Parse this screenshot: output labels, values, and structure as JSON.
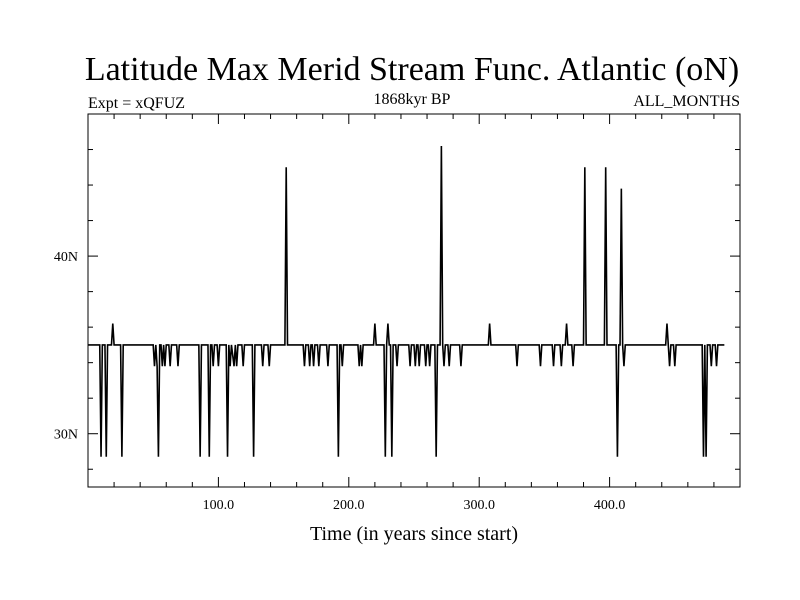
{
  "chart_data": {
    "type": "line",
    "title": "Latitude Max Merid Stream Func. Atlantic (oN)",
    "subtitle_left": "Expt = xQFUZ",
    "subtitle_center": "1868kyr BP",
    "subtitle_right": "ALL_MONTHS",
    "xlabel": "Time (in years since start)",
    "ylabel": "",
    "xlim": [
      0,
      500
    ],
    "ylim": [
      27,
      48
    ],
    "x_ticks": [
      {
        "value": 100,
        "label": "100.0"
      },
      {
        "value": 200,
        "label": "200.0"
      },
      {
        "value": 300,
        "label": "300.0"
      },
      {
        "value": 400,
        "label": "400.0"
      }
    ],
    "y_ticks": [
      {
        "value": 30,
        "label": "30N"
      },
      {
        "value": 40,
        "label": "40N"
      }
    ],
    "grid": false,
    "baseline": 35,
    "series": [
      {
        "points": [
          [
            0,
            35
          ],
          [
            9,
            35
          ],
          [
            10,
            28.7
          ],
          [
            11,
            35
          ],
          [
            13,
            35
          ],
          [
            14,
            28.7
          ],
          [
            15,
            35
          ],
          [
            18,
            35
          ],
          [
            19,
            36.2
          ],
          [
            20,
            35
          ],
          [
            25,
            35
          ],
          [
            26,
            28.7
          ],
          [
            27,
            35
          ],
          [
            50,
            35
          ],
          [
            51,
            33.8
          ],
          [
            52,
            35
          ],
          [
            53,
            33.8
          ],
          [
            54,
            28.7
          ],
          [
            55,
            35
          ],
          [
            56,
            35
          ],
          [
            57,
            33.8
          ],
          [
            58,
            35
          ],
          [
            59,
            33.8
          ],
          [
            60,
            35
          ],
          [
            62,
            35
          ],
          [
            63,
            33.8
          ],
          [
            64,
            35
          ],
          [
            68,
            35
          ],
          [
            69,
            33.8
          ],
          [
            70,
            35
          ],
          [
            85,
            35
          ],
          [
            86,
            28.7
          ],
          [
            87,
            35
          ],
          [
            92,
            35
          ],
          [
            93,
            28.7
          ],
          [
            94,
            35
          ],
          [
            95,
            35
          ],
          [
            96,
            33.8
          ],
          [
            97,
            35
          ],
          [
            99,
            35
          ],
          [
            100,
            33.8
          ],
          [
            101,
            35
          ],
          [
            106,
            35
          ],
          [
            107,
            28.7
          ],
          [
            108,
            35
          ],
          [
            109,
            33.8
          ],
          [
            110,
            35
          ],
          [
            112,
            33.8
          ],
          [
            113,
            35
          ],
          [
            114,
            33.8
          ],
          [
            115,
            35
          ],
          [
            118,
            35
          ],
          [
            119,
            33.8
          ],
          [
            120,
            35
          ],
          [
            126,
            35
          ],
          [
            127,
            28.7
          ],
          [
            128,
            35
          ],
          [
            133,
            35
          ],
          [
            134,
            33.8
          ],
          [
            135,
            35
          ],
          [
            138,
            35
          ],
          [
            139,
            33.8
          ],
          [
            140,
            35
          ],
          [
            151,
            35
          ],
          [
            152,
            45
          ],
          [
            153,
            35
          ],
          [
            165,
            35
          ],
          [
            166,
            33.8
          ],
          [
            167,
            35
          ],
          [
            169,
            35
          ],
          [
            170,
            33.8
          ],
          [
            171,
            35
          ],
          [
            172,
            35
          ],
          [
            173,
            33.8
          ],
          [
            174,
            35
          ],
          [
            176,
            35
          ],
          [
            177,
            33.8
          ],
          [
            178,
            35
          ],
          [
            183,
            35
          ],
          [
            184,
            33.8
          ],
          [
            185,
            35
          ],
          [
            191,
            35
          ],
          [
            192,
            28.7
          ],
          [
            193,
            35
          ],
          [
            194,
            35
          ],
          [
            195,
            33.8
          ],
          [
            196,
            35
          ],
          [
            207,
            35
          ],
          [
            208,
            33.8
          ],
          [
            209,
            35
          ],
          [
            210,
            33.8
          ],
          [
            211,
            35
          ],
          [
            219,
            35
          ],
          [
            220,
            36.2
          ],
          [
            221,
            35
          ],
          [
            227,
            35
          ],
          [
            228,
            28.7
          ],
          [
            229,
            35
          ],
          [
            230,
            36.2
          ],
          [
            231,
            35
          ],
          [
            232,
            35
          ],
          [
            233,
            28.7
          ],
          [
            234,
            35
          ],
          [
            236,
            35
          ],
          [
            237,
            33.8
          ],
          [
            238,
            35
          ],
          [
            246,
            35
          ],
          [
            247,
            33.8
          ],
          [
            248,
            35
          ],
          [
            250,
            35
          ],
          [
            251,
            33.8
          ],
          [
            252,
            35
          ],
          [
            253,
            35
          ],
          [
            254,
            33.8
          ],
          [
            255,
            35
          ],
          [
            258,
            35
          ],
          [
            259,
            33.8
          ],
          [
            260,
            35
          ],
          [
            261,
            35
          ],
          [
            262,
            33.8
          ],
          [
            263,
            35
          ],
          [
            266,
            35
          ],
          [
            267,
            28.7
          ],
          [
            268,
            35
          ],
          [
            270,
            35
          ],
          [
            271,
            46.2
          ],
          [
            272,
            35
          ],
          [
            273,
            33.8
          ],
          [
            274,
            35
          ],
          [
            276,
            35
          ],
          [
            277,
            33.8
          ],
          [
            278,
            35
          ],
          [
            285,
            35
          ],
          [
            286,
            33.8
          ],
          [
            287,
            35
          ],
          [
            307,
            35
          ],
          [
            308,
            36.2
          ],
          [
            309,
            35
          ],
          [
            328,
            35
          ],
          [
            329,
            33.8
          ],
          [
            330,
            35
          ],
          [
            346,
            35
          ],
          [
            347,
            33.8
          ],
          [
            348,
            35
          ],
          [
            356,
            35
          ],
          [
            357,
            33.8
          ],
          [
            358,
            35
          ],
          [
            362,
            35
          ],
          [
            363,
            33.8
          ],
          [
            364,
            35
          ],
          [
            366,
            35
          ],
          [
            367,
            36.2
          ],
          [
            368,
            35
          ],
          [
            371,
            35
          ],
          [
            372,
            33.8
          ],
          [
            373,
            35
          ],
          [
            380,
            35
          ],
          [
            381,
            45
          ],
          [
            382,
            35
          ],
          [
            396,
            35
          ],
          [
            397,
            45
          ],
          [
            398,
            35
          ],
          [
            405,
            35
          ],
          [
            406,
            28.7
          ],
          [
            407,
            35
          ],
          [
            408,
            35
          ],
          [
            409,
            43.8
          ],
          [
            410,
            35
          ],
          [
            411,
            33.8
          ],
          [
            412,
            35
          ],
          [
            443,
            35
          ],
          [
            444,
            36.2
          ],
          [
            445,
            35
          ],
          [
            446,
            33.8
          ],
          [
            447,
            35
          ],
          [
            449,
            35
          ],
          [
            450,
            33.8
          ],
          [
            451,
            35
          ],
          [
            471,
            35
          ],
          [
            472,
            28.7
          ],
          [
            473,
            35
          ],
          [
            474,
            28.7
          ],
          [
            475,
            35
          ],
          [
            477,
            35
          ],
          [
            478,
            33.8
          ],
          [
            479,
            35
          ],
          [
            481,
            35
          ],
          [
            482,
            33.8
          ],
          [
            483,
            35
          ],
          [
            487,
            35
          ],
          [
            488,
            35
          ]
        ]
      }
    ]
  }
}
